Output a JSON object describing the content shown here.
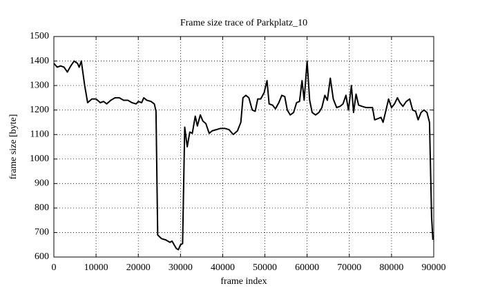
{
  "chart_data": {
    "type": "line",
    "title": "Frame size trace of Parkplatz_10",
    "x_label": "frame index",
    "y_label": "frame size [byte]",
    "xlim": [
      0,
      90000
    ],
    "ylim": [
      600,
      1500
    ],
    "xticks": [
      0,
      10000,
      20000,
      30000,
      40000,
      50000,
      60000,
      70000,
      80000,
      90000
    ],
    "yticks": [
      600,
      700,
      800,
      900,
      1000,
      1100,
      1200,
      1300,
      1400,
      1500
    ],
    "grid": true,
    "series": [
      {
        "color": "#000000",
        "x": [
          0,
          800,
          1600,
          2400,
          3200,
          4000,
          4800,
          5600,
          6000,
          6500,
          7300,
          8000,
          9000,
          10000,
          11000,
          11800,
          12500,
          13500,
          14500,
          15500,
          16500,
          17500,
          18500,
          19500,
          20000,
          20800,
          21300,
          22000,
          23000,
          23800,
          24200,
          24600,
          25500,
          26500,
          27500,
          28000,
          28500,
          29000,
          29500,
          30000,
          30500,
          31000,
          31600,
          32200,
          32800,
          33500,
          34000,
          34700,
          35300,
          36000,
          36800,
          37500,
          38500,
          39500,
          40500,
          41500,
          42500,
          43500,
          44300,
          44800,
          45500,
          46200,
          47000,
          47700,
          48300,
          49000,
          49800,
          50500,
          51000,
          51800,
          52500,
          53300,
          54000,
          54700,
          55300,
          56000,
          56800,
          57500,
          58200,
          58800,
          59300,
          60000,
          60600,
          61200,
          62000,
          62800,
          63500,
          64200,
          64800,
          65500,
          66200,
          67000,
          67800,
          68500,
          69200,
          69800,
          70500,
          71000,
          71600,
          72200,
          73000,
          74000,
          75000,
          75500,
          76000,
          76800,
          77500,
          78000,
          78700,
          79300,
          80000,
          80700,
          81400,
          82000,
          82700,
          83500,
          84300,
          85000,
          85700,
          86300,
          87000,
          87700,
          88400,
          89000,
          89500,
          89800
        ],
        "values": [
          1390,
          1375,
          1380,
          1375,
          1355,
          1380,
          1400,
          1390,
          1375,
          1400,
          1300,
          1230,
          1245,
          1245,
          1230,
          1235,
          1225,
          1240,
          1250,
          1250,
          1240,
          1240,
          1230,
          1225,
          1235,
          1230,
          1250,
          1240,
          1235,
          1225,
          1195,
          690,
          675,
          670,
          660,
          665,
          650,
          635,
          630,
          650,
          655,
          1130,
          1050,
          1110,
          1105,
          1175,
          1135,
          1180,
          1155,
          1145,
          1105,
          1115,
          1120,
          1125,
          1125,
          1120,
          1100,
          1115,
          1150,
          1250,
          1260,
          1250,
          1200,
          1195,
          1245,
          1245,
          1270,
          1320,
          1225,
          1220,
          1205,
          1230,
          1260,
          1255,
          1200,
          1180,
          1190,
          1230,
          1235,
          1320,
          1240,
          1400,
          1240,
          1190,
          1180,
          1190,
          1210,
          1260,
          1240,
          1330,
          1245,
          1210,
          1215,
          1225,
          1260,
          1200,
          1300,
          1190,
          1265,
          1220,
          1215,
          1210,
          1210,
          1210,
          1160,
          1165,
          1170,
          1150,
          1200,
          1245,
          1210,
          1225,
          1250,
          1230,
          1215,
          1235,
          1245,
          1200,
          1195,
          1160,
          1190,
          1200,
          1190,
          1150,
          760,
          670
        ]
      }
    ]
  }
}
